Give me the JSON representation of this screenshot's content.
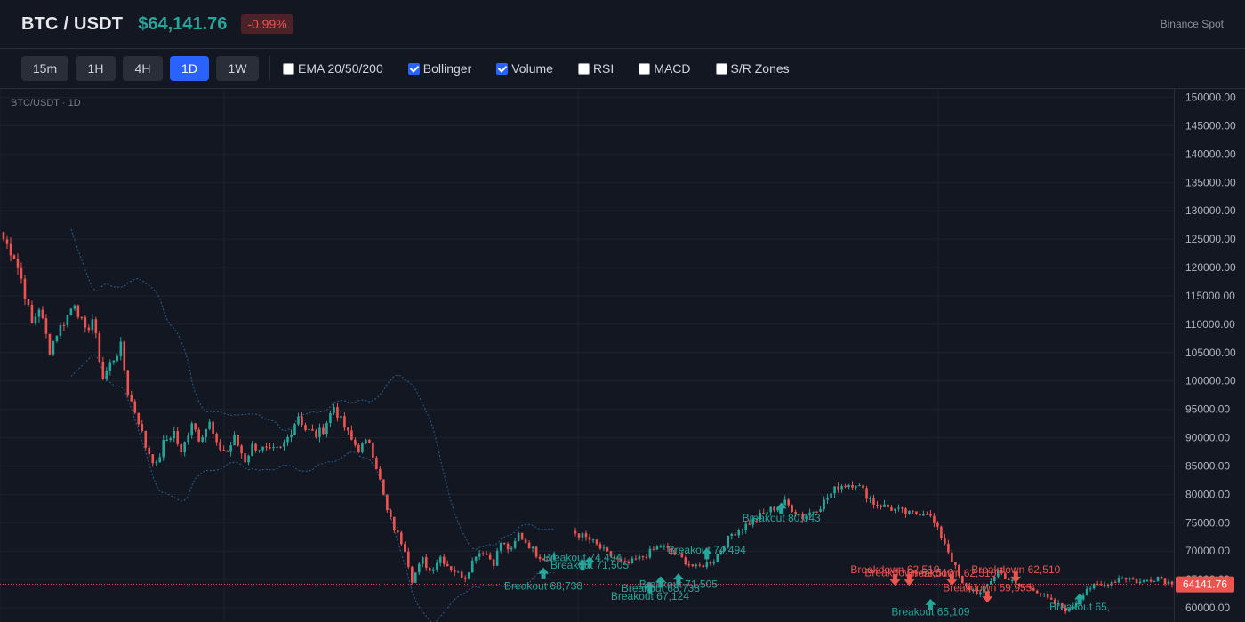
{
  "header": {
    "symbol": "BTC / USDT",
    "price": "$64,141.76",
    "change": "-0.99%",
    "exchange": "Binance Spot"
  },
  "toolbar": {
    "timeframes": [
      {
        "label": "15m",
        "active": false
      },
      {
        "label": "1H",
        "active": false
      },
      {
        "label": "4H",
        "active": false
      },
      {
        "label": "1D",
        "active": true
      },
      {
        "label": "1W",
        "active": false
      }
    ],
    "indicators": [
      {
        "label": "EMA 20/50/200",
        "checked": false
      },
      {
        "label": "Bollinger",
        "checked": true
      },
      {
        "label": "Volume",
        "checked": true
      },
      {
        "label": "RSI",
        "checked": false
      },
      {
        "label": "MACD",
        "checked": false
      },
      {
        "label": "S/R Zones",
        "checked": false
      }
    ]
  },
  "colors": {
    "up": "#26a69a",
    "down": "#ef5350",
    "accent": "#2962ff",
    "bollinger": "#2a5f8f",
    "background": "#131722",
    "grid": "#1e222d"
  },
  "chart_data": {
    "type": "candlestick",
    "watermark": "BTC/USDT · 1D",
    "last_price_label": "64141.76",
    "last_price": 64141.76,
    "ylim": [
      57500,
      151500
    ],
    "y_ticks": [
      60000,
      65000,
      70000,
      75000,
      80000,
      85000,
      90000,
      95000,
      100000,
      105000,
      110000,
      115000,
      120000,
      125000,
      130000,
      135000,
      140000,
      145000,
      150000
    ],
    "y_tick_labels": [
      "60000.00",
      "65000.00",
      "70000.00",
      "75000.00",
      "80000.00",
      "85000.00",
      "90000.00",
      "95000.00",
      "100000.00",
      "105000.00",
      "110000.00",
      "115000.00",
      "120000.00",
      "125000.00",
      "130000.00",
      "135000.00",
      "140000.00",
      "145000.00",
      "150000.00"
    ],
    "grid": true,
    "candle_count": 330,
    "closes": [
      [
        0,
        125000
      ],
      [
        5,
        122000
      ],
      [
        10,
        118000
      ],
      [
        15,
        110000
      ],
      [
        20,
        113000
      ],
      [
        25,
        105500
      ],
      [
        30,
        108500
      ],
      [
        35,
        111500
      ],
      [
        40,
        114000
      ],
      [
        45,
        108500
      ],
      [
        50,
        111000
      ],
      [
        55,
        100500
      ],
      [
        60,
        103000
      ],
      [
        65,
        106000
      ],
      [
        70,
        98000
      ],
      [
        75,
        93000
      ],
      [
        80,
        88500
      ],
      [
        85,
        85000
      ],
      [
        90,
        89000
      ],
      [
        95,
        91000
      ],
      [
        100,
        87000
      ],
      [
        105,
        93000
      ],
      [
        110,
        90000
      ],
      [
        115,
        92500
      ],
      [
        120,
        88500
      ],
      [
        125,
        87500
      ],
      [
        130,
        90000
      ],
      [
        135,
        86000
      ],
      [
        140,
        88500
      ],
      [
        145,
        88000
      ],
      [
        150,
        87500
      ],
      [
        155,
        88000
      ],
      [
        160,
        90000
      ],
      [
        165,
        94000
      ],
      [
        170,
        91500
      ],
      [
        175,
        90500
      ],
      [
        180,
        91500
      ],
      [
        185,
        95500
      ],
      [
        190,
        93000
      ],
      [
        195,
        89500
      ],
      [
        200,
        88000
      ],
      [
        205,
        89500
      ],
      [
        210,
        85000
      ],
      [
        215,
        77000
      ],
      [
        220,
        74000
      ],
      [
        225,
        70500
      ],
      [
        230,
        65000
      ],
      [
        235,
        68500
      ],
      [
        240,
        66500
      ],
      [
        245,
        69000
      ],
      [
        250,
        67500
      ],
      [
        255,
        66000
      ],
      [
        260,
        65500
      ],
      [
        265,
        69500
      ],
      [
        270,
        70000
      ],
      [
        275,
        68000
      ],
      [
        280,
        71500
      ],
      [
        285,
        70000
      ],
      [
        290,
        73000
      ],
      [
        295,
        71000
      ],
      [
        300,
        69500
      ],
      [
        305,
        68500
      ],
      [
        310,
        69500
      ]
    ],
    "closes_tail": [
      [
        310,
        69500
      ],
      [
        315,
        67000
      ],
      [
        320,
        68000
      ]
    ],
    "closes_part2": [
      [
        160,
        73500
      ],
      [
        165,
        72000
      ],
      [
        170,
        69500
      ],
      [
        175,
        67500
      ],
      [
        180,
        69000
      ],
      [
        185,
        71000
      ],
      [
        190,
        69000
      ],
      [
        195,
        67000
      ],
      [
        200,
        68500
      ],
      [
        205,
        73000
      ],
      [
        210,
        75000
      ],
      [
        215,
        77000
      ],
      [
        220,
        78500
      ],
      [
        225,
        76000
      ],
      [
        230,
        78000
      ],
      [
        235,
        81500
      ],
      [
        240,
        82000
      ],
      [
        245,
        78500
      ],
      [
        250,
        77500
      ],
      [
        255,
        76500
      ],
      [
        260,
        77000
      ],
      [
        265,
        71500
      ],
      [
        270,
        64000
      ],
      [
        275,
        62500
      ],
      [
        280,
        66500
      ],
      [
        285,
        64000
      ],
      [
        290,
        63500
      ],
      [
        295,
        61000
      ],
      [
        300,
        59500
      ],
      [
        305,
        63500
      ],
      [
        310,
        64000
      ],
      [
        315,
        65500
      ],
      [
        320,
        64500
      ],
      [
        325,
        65500
      ],
      [
        329,
        64141.76
      ]
    ],
    "signals": [
      {
        "text": "Breakout 68,738",
        "type": "breakout",
        "x": 152,
        "y": 66000,
        "label_y": 63200
      },
      {
        "text": "Breakout 74,494",
        "type": "breakout",
        "x": 163,
        "y": 67500,
        "label_y": 68200
      },
      {
        "text": "Breakout 71,505",
        "type": "breakout",
        "x": 165,
        "y": 68000,
        "label_y": 66900
      },
      {
        "text": "Breakout 67,124",
        "type": "breakout",
        "x": 182,
        "y": 63500,
        "label_y": 61400
      },
      {
        "text": "Breakout 68,738",
        "type": "breakout",
        "x": 185,
        "y": 64500,
        "label_y": 62800
      },
      {
        "text": "Breakout 71,505",
        "type": "breakout",
        "x": 190,
        "y": 65000,
        "label_y": 63500
      },
      {
        "text": "Breakout 74,494",
        "type": "breakout",
        "x": 198,
        "y": 69500,
        "label_y": 69600
      },
      {
        "text": "Breakout 80,043",
        "type": "breakout",
        "x": 219,
        "y": 77500,
        "label_y": 75200
      },
      {
        "text": "Breakdown 62,510",
        "type": "breakdown",
        "x": 251,
        "y": 65000,
        "label_y": 66100
      },
      {
        "text": "Breakdown 62,510",
        "type": "breakdown",
        "x": 255,
        "y": 65000,
        "label_y": 65600
      },
      {
        "text": "Breakout 65,109",
        "type": "breakout",
        "x": 261,
        "y": 60500,
        "label_y": 58700
      },
      {
        "text": "Breakdown 62,510",
        "type": "breakdown",
        "x": 267,
        "y": 65000,
        "label_y": 65500
      },
      {
        "text": "Breakdown 59,955",
        "type": "breakdown",
        "x": 277,
        "y": 62000,
        "label_y": 62900
      },
      {
        "text": "Breakdown 62,510",
        "type": "breakdown",
        "x": 285,
        "y": 65500,
        "label_y": 66100
      },
      {
        "text": "Breakout 65,",
        "type": "breakout",
        "x": 303,
        "y": 61500,
        "label_y": 59500
      }
    ]
  }
}
